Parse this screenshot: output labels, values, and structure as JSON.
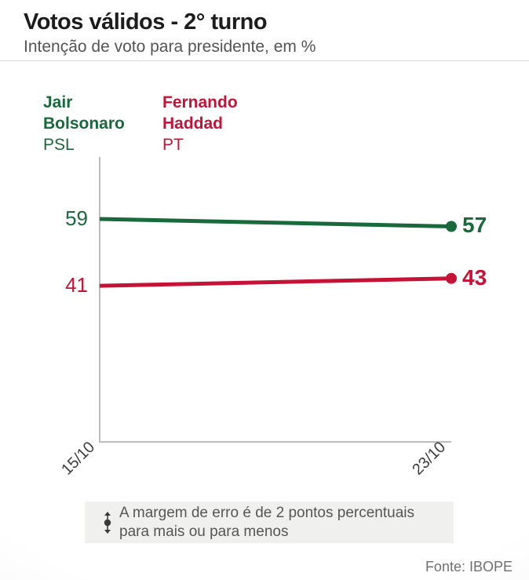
{
  "header": {
    "title": "Votos válidos - 2° turno",
    "subtitle": "Intenção de voto para presidente, em %"
  },
  "chart_data": {
    "type": "line",
    "title": "Votos válidos - 2° turno",
    "subtitle": "Intenção de voto para presidente, em %",
    "categories": [
      "15/10",
      "23/10"
    ],
    "series": [
      {
        "name": "Jair Bolsonaro",
        "party": "PSL",
        "color": "#18693b",
        "values": [
          59,
          57
        ]
      },
      {
        "name": "Fernando Haddad",
        "party": "PT",
        "color": "#c51236",
        "values": [
          41,
          43
        ]
      }
    ],
    "ylim": [
      0,
      76
    ],
    "grid": false,
    "legend_position": "top-left",
    "axis_color": "#bdbdbd",
    "value_labels": "start-and-end"
  },
  "footnote": {
    "icon": "error-margin-icon",
    "text": "A margem de erro é de 2 pontos percentuais para mais ou para menos"
  },
  "footer": {
    "source": "Fonte: IBOPE"
  }
}
